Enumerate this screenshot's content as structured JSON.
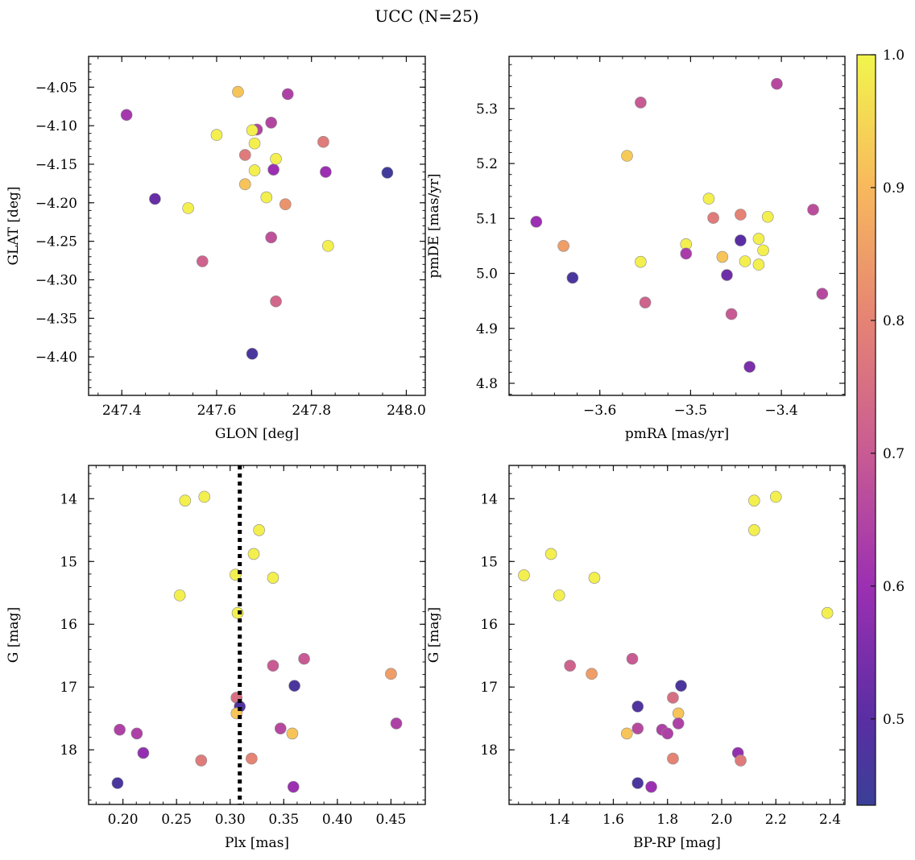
{
  "figure": {
    "title": "UCC (N=25)",
    "colorbar": {
      "vmin": 0.435,
      "vmax": 1.0,
      "ticks": [
        0.5,
        0.6,
        0.7,
        0.8,
        0.9,
        1.0
      ],
      "colormap": "plasma"
    }
  },
  "chart_data": [
    {
      "type": "scatter",
      "xlabel": "GLON [deg]",
      "ylabel": "GLAT [deg]",
      "xlim": [
        247.33,
        248.04
      ],
      "ylim": [
        -4.45,
        -4.01
      ],
      "y_inverted": false,
      "xticks": [
        247.4,
        247.6,
        247.8,
        248.0
      ],
      "xtick_labels": [
        "247.4",
        "247.6",
        "247.8",
        "248.0"
      ],
      "yticks": [
        -4.05,
        -4.1,
        -4.15,
        -4.2,
        -4.25,
        -4.3,
        -4.35,
        -4.4
      ],
      "ytick_labels": [
        "−4.05",
        "−4.10",
        "−4.15",
        "−4.20",
        "−4.25",
        "−4.30",
        "−4.35",
        "−4.40"
      ],
      "points": [
        {
          "x": 247.41,
          "y": -4.086,
          "c": 0.62
        },
        {
          "x": 247.47,
          "y": -4.195,
          "c": 0.52
        },
        {
          "x": 247.54,
          "y": -4.207,
          "c": 0.99
        },
        {
          "x": 247.57,
          "y": -4.276,
          "c": 0.72
        },
        {
          "x": 247.6,
          "y": -4.112,
          "c": 0.99
        },
        {
          "x": 247.645,
          "y": -4.056,
          "c": 0.92
        },
        {
          "x": 247.66,
          "y": -4.138,
          "c": 0.78
        },
        {
          "x": 247.66,
          "y": -4.176,
          "c": 0.92
        },
        {
          "x": 247.685,
          "y": -4.105,
          "c": 0.65
        },
        {
          "x": 247.675,
          "y": -4.106,
          "c": 0.99
        },
        {
          "x": 247.68,
          "y": -4.123,
          "c": 0.99
        },
        {
          "x": 247.68,
          "y": -4.158,
          "c": 0.99
        },
        {
          "x": 247.705,
          "y": -4.193,
          "c": 0.99
        },
        {
          "x": 247.715,
          "y": -4.096,
          "c": 0.65
        },
        {
          "x": 247.72,
          "y": -4.157,
          "c": 0.6
        },
        {
          "x": 247.715,
          "y": -4.245,
          "c": 0.68
        },
        {
          "x": 247.725,
          "y": -4.143,
          "c": 0.99
        },
        {
          "x": 247.745,
          "y": -4.202,
          "c": 0.83
        },
        {
          "x": 247.75,
          "y": -4.059,
          "c": 0.64
        },
        {
          "x": 247.725,
          "y": -4.328,
          "c": 0.73
        },
        {
          "x": 247.675,
          "y": -4.396,
          "c": 0.47
        },
        {
          "x": 247.825,
          "y": -4.121,
          "c": 0.78
        },
        {
          "x": 247.83,
          "y": -4.16,
          "c": 0.6
        },
        {
          "x": 247.835,
          "y": -4.256,
          "c": 0.99
        },
        {
          "x": 247.96,
          "y": -4.161,
          "c": 0.45
        }
      ]
    },
    {
      "type": "scatter",
      "xlabel": "pmRA [mas/yr]",
      "ylabel": "pmDE [mas/yr]",
      "xlim": [
        -3.7,
        -3.33
      ],
      "ylim": [
        4.778,
        5.395
      ],
      "y_inverted": false,
      "xticks": [
        -3.6,
        -3.5,
        -3.4
      ],
      "xtick_labels": [
        "−3.6",
        "−3.5",
        "−3.4"
      ],
      "yticks": [
        4.8,
        4.9,
        5.0,
        5.1,
        5.2,
        5.3
      ],
      "ytick_labels": [
        "4.8",
        "4.9",
        "5.0",
        "5.1",
        "5.2",
        "5.3"
      ],
      "points": [
        {
          "x": -3.67,
          "y": 5.094,
          "c": 0.6
        },
        {
          "x": -3.64,
          "y": 5.05,
          "c": 0.85
        },
        {
          "x": -3.63,
          "y": 4.992,
          "c": 0.47
        },
        {
          "x": -3.57,
          "y": 5.214,
          "c": 0.93
        },
        {
          "x": -3.555,
          "y": 5.311,
          "c": 0.7
        },
        {
          "x": -3.555,
          "y": 5.021,
          "c": 0.99
        },
        {
          "x": -3.55,
          "y": 4.947,
          "c": 0.72
        },
        {
          "x": -3.505,
          "y": 5.053,
          "c": 0.99
        },
        {
          "x": -3.505,
          "y": 5.036,
          "c": 0.63
        },
        {
          "x": -3.48,
          "y": 5.136,
          "c": 0.99
        },
        {
          "x": -3.475,
          "y": 5.101,
          "c": 0.78
        },
        {
          "x": -3.46,
          "y": 4.997,
          "c": 0.53
        },
        {
          "x": -3.455,
          "y": 4.926,
          "c": 0.7
        },
        {
          "x": -3.465,
          "y": 5.03,
          "c": 0.92
        },
        {
          "x": -3.445,
          "y": 5.06,
          "c": 0.5
        },
        {
          "x": -3.445,
          "y": 5.107,
          "c": 0.8
        },
        {
          "x": -3.44,
          "y": 5.022,
          "c": 0.99
        },
        {
          "x": -3.435,
          "y": 4.83,
          "c": 0.55
        },
        {
          "x": -3.425,
          "y": 5.063,
          "c": 0.99
        },
        {
          "x": -3.425,
          "y": 5.016,
          "c": 0.99
        },
        {
          "x": -3.42,
          "y": 5.042,
          "c": 0.99
        },
        {
          "x": -3.415,
          "y": 5.103,
          "c": 0.99
        },
        {
          "x": -3.405,
          "y": 5.345,
          "c": 0.66
        },
        {
          "x": -3.365,
          "y": 5.116,
          "c": 0.67
        },
        {
          "x": -3.355,
          "y": 4.963,
          "c": 0.66
        }
      ]
    },
    {
      "type": "scatter",
      "xlabel": "Plx [mas]",
      "ylabel": "G [mag]",
      "xlim": [
        0.168,
        0.482
      ],
      "ylim": [
        13.47,
        18.87
      ],
      "y_inverted": true,
      "vline": {
        "x": 0.309,
        "style": "dotted"
      },
      "xticks": [
        0.2,
        0.25,
        0.3,
        0.35,
        0.4,
        0.45
      ],
      "xtick_labels": [
        "0.20",
        "0.25",
        "0.30",
        "0.35",
        "0.40",
        "0.45"
      ],
      "yticks": [
        14,
        15,
        16,
        17,
        18
      ],
      "ytick_labels": [
        "14",
        "15",
        "16",
        "17",
        "18"
      ],
      "points": [
        {
          "x": 0.258,
          "y": 14.03,
          "c": 0.99
        },
        {
          "x": 0.276,
          "y": 13.97,
          "c": 0.99
        },
        {
          "x": 0.327,
          "y": 14.5,
          "c": 0.99
        },
        {
          "x": 0.322,
          "y": 14.88,
          "c": 0.99
        },
        {
          "x": 0.305,
          "y": 15.21,
          "c": 0.99
        },
        {
          "x": 0.34,
          "y": 15.26,
          "c": 0.99
        },
        {
          "x": 0.253,
          "y": 15.54,
          "c": 0.99
        },
        {
          "x": 0.307,
          "y": 15.82,
          "c": 0.99
        },
        {
          "x": 0.369,
          "y": 16.55,
          "c": 0.7
        },
        {
          "x": 0.34,
          "y": 16.66,
          "c": 0.7
        },
        {
          "x": 0.45,
          "y": 16.79,
          "c": 0.85
        },
        {
          "x": 0.36,
          "y": 16.98,
          "c": 0.47
        },
        {
          "x": 0.306,
          "y": 17.17,
          "c": 0.75
        },
        {
          "x": 0.309,
          "y": 17.31,
          "c": 0.48
        },
        {
          "x": 0.306,
          "y": 17.42,
          "c": 0.92
        },
        {
          "x": 0.455,
          "y": 17.58,
          "c": 0.64
        },
        {
          "x": 0.197,
          "y": 17.68,
          "c": 0.64
        },
        {
          "x": 0.347,
          "y": 17.66,
          "c": 0.66
        },
        {
          "x": 0.213,
          "y": 17.74,
          "c": 0.64
        },
        {
          "x": 0.358,
          "y": 17.74,
          "c": 0.92
        },
        {
          "x": 0.219,
          "y": 18.05,
          "c": 0.59
        },
        {
          "x": 0.32,
          "y": 18.14,
          "c": 0.8
        },
        {
          "x": 0.273,
          "y": 18.17,
          "c": 0.78
        },
        {
          "x": 0.195,
          "y": 18.53,
          "c": 0.47
        },
        {
          "x": 0.359,
          "y": 18.59,
          "c": 0.6
        }
      ]
    },
    {
      "type": "scatter",
      "xlabel": "BP-RP [mag]",
      "ylabel": "G [mag]",
      "xlim": [
        1.215,
        2.455
      ],
      "ylim": [
        13.47,
        18.87
      ],
      "y_inverted": true,
      "xticks": [
        1.4,
        1.6,
        1.8,
        2.0,
        2.2,
        2.4
      ],
      "xtick_labels": [
        "1.4",
        "1.6",
        "1.8",
        "2.0",
        "2.2",
        "2.4"
      ],
      "yticks": [
        14,
        15,
        16,
        17,
        18
      ],
      "ytick_labels": [
        "14",
        "15",
        "16",
        "17",
        "18"
      ],
      "points": [
        {
          "x": 1.27,
          "y": 15.22,
          "c": 0.99
        },
        {
          "x": 1.37,
          "y": 14.88,
          "c": 0.99
        },
        {
          "x": 1.4,
          "y": 15.54,
          "c": 0.99
        },
        {
          "x": 1.53,
          "y": 15.26,
          "c": 0.99
        },
        {
          "x": 1.44,
          "y": 16.66,
          "c": 0.72
        },
        {
          "x": 1.52,
          "y": 16.79,
          "c": 0.85
        },
        {
          "x": 1.67,
          "y": 16.55,
          "c": 0.7
        },
        {
          "x": 1.85,
          "y": 16.98,
          "c": 0.47
        },
        {
          "x": 1.69,
          "y": 17.31,
          "c": 0.48
        },
        {
          "x": 1.82,
          "y": 17.17,
          "c": 0.75
        },
        {
          "x": 1.84,
          "y": 17.42,
          "c": 0.92
        },
        {
          "x": 1.84,
          "y": 17.58,
          "c": 0.64
        },
        {
          "x": 1.69,
          "y": 17.66,
          "c": 0.66
        },
        {
          "x": 1.78,
          "y": 17.68,
          "c": 0.64
        },
        {
          "x": 1.8,
          "y": 17.74,
          "c": 0.64
        },
        {
          "x": 1.65,
          "y": 17.74,
          "c": 0.92
        },
        {
          "x": 1.82,
          "y": 18.14,
          "c": 0.8
        },
        {
          "x": 2.06,
          "y": 18.05,
          "c": 0.59
        },
        {
          "x": 2.07,
          "y": 18.17,
          "c": 0.78
        },
        {
          "x": 1.69,
          "y": 18.53,
          "c": 0.47
        },
        {
          "x": 1.74,
          "y": 18.59,
          "c": 0.6
        },
        {
          "x": 2.12,
          "y": 14.03,
          "c": 0.99
        },
        {
          "x": 2.2,
          "y": 13.97,
          "c": 0.99
        },
        {
          "x": 2.12,
          "y": 14.5,
          "c": 0.99
        },
        {
          "x": 2.39,
          "y": 15.82,
          "c": 0.99
        }
      ]
    }
  ]
}
